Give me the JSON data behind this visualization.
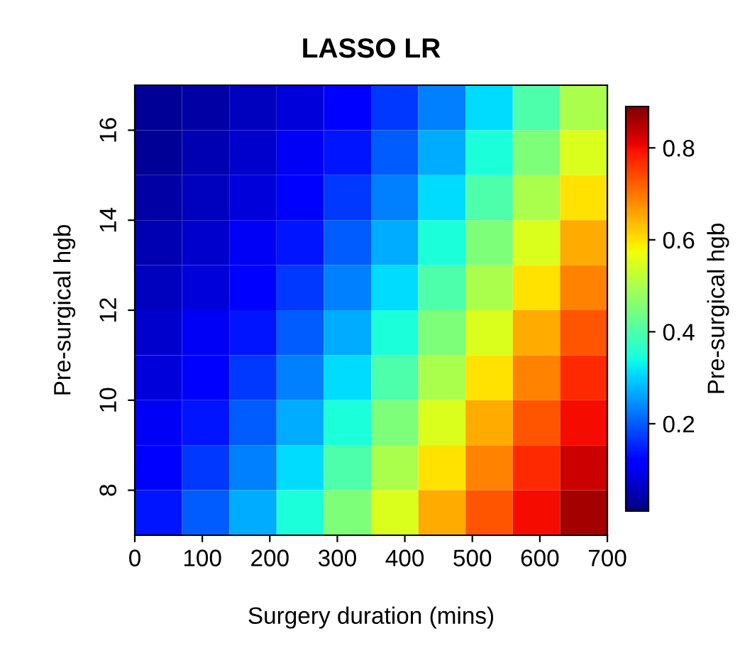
{
  "chart_data": {
    "type": "heatmap",
    "title": "LASSO LR",
    "xlabel": "Surgery duration (mins)",
    "ylabel": "Pre-surgical hgb",
    "clabel": "Pre-surgical hgb",
    "xlim": [
      0,
      700
    ],
    "ylim": [
      7,
      17
    ],
    "xticks": [
      0,
      100,
      200,
      300,
      400,
      500,
      600,
      700
    ],
    "yticks": [
      8,
      10,
      12,
      14,
      16
    ],
    "clim": [
      0.01,
      0.89
    ],
    "cticks": [
      0.2,
      0.4,
      0.6,
      0.8
    ],
    "cells": [
      [
        0.03,
        0.04,
        0.06,
        0.08,
        0.12,
        0.17,
        0.23,
        0.31,
        0.4,
        0.5
      ],
      [
        0.03,
        0.05,
        0.07,
        0.1,
        0.14,
        0.2,
        0.27,
        0.35,
        0.45,
        0.55
      ],
      [
        0.04,
        0.06,
        0.08,
        0.12,
        0.17,
        0.23,
        0.31,
        0.4,
        0.5,
        0.6
      ],
      [
        0.05,
        0.07,
        0.1,
        0.14,
        0.2,
        0.27,
        0.35,
        0.45,
        0.55,
        0.65
      ],
      [
        0.06,
        0.08,
        0.12,
        0.17,
        0.23,
        0.31,
        0.4,
        0.5,
        0.6,
        0.69
      ],
      [
        0.07,
        0.1,
        0.14,
        0.2,
        0.27,
        0.35,
        0.45,
        0.55,
        0.65,
        0.73
      ],
      [
        0.08,
        0.12,
        0.17,
        0.23,
        0.31,
        0.4,
        0.5,
        0.6,
        0.69,
        0.77
      ],
      [
        0.1,
        0.14,
        0.2,
        0.27,
        0.35,
        0.45,
        0.55,
        0.65,
        0.73,
        0.8
      ],
      [
        0.12,
        0.17,
        0.23,
        0.31,
        0.4,
        0.5,
        0.6,
        0.69,
        0.77,
        0.83
      ],
      [
        0.14,
        0.2,
        0.27,
        0.35,
        0.45,
        0.55,
        0.65,
        0.73,
        0.8,
        0.86
      ]
    ]
  }
}
